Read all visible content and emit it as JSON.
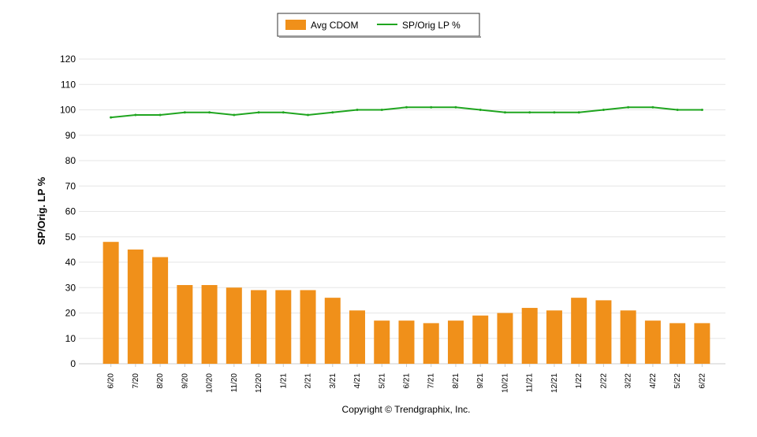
{
  "chart_data": {
    "type": "bar",
    "y_label": "SP/Orig. LP %",
    "footer": "Copyright © Trendgraphix, Inc.",
    "categories": [
      "6/20",
      "7/20",
      "8/20",
      "9/20",
      "10/20",
      "11/20",
      "12/20",
      "1/21",
      "2/21",
      "3/21",
      "4/21",
      "5/21",
      "6/21",
      "7/21",
      "8/21",
      "9/21",
      "10/21",
      "11/21",
      "12/21",
      "1/22",
      "2/22",
      "3/22",
      "4/22",
      "5/22",
      "6/22"
    ],
    "series": [
      {
        "name": "Avg CDOM",
        "type": "bar",
        "color": "#f0901a",
        "values": [
          48,
          45,
          42,
          31,
          31,
          30,
          29,
          29,
          29,
          26,
          21,
          17,
          17,
          16,
          17,
          19,
          20,
          22,
          21,
          26,
          25,
          21,
          17,
          16,
          16
        ]
      },
      {
        "name": "SP/Orig LP %",
        "type": "line",
        "color": "#1fa51f",
        "values": [
          97,
          98,
          98,
          99,
          99,
          98,
          99,
          99,
          98,
          99,
          100,
          100,
          101,
          101,
          101,
          100,
          99,
          99,
          99,
          99,
          100,
          101,
          101,
          100,
          100
        ]
      }
    ],
    "ylim": [
      0,
      120
    ],
    "yticks": [
      0,
      10,
      20,
      30,
      40,
      50,
      60,
      70,
      80,
      90,
      100,
      110,
      120
    ],
    "grid": true,
    "legend": "top"
  }
}
